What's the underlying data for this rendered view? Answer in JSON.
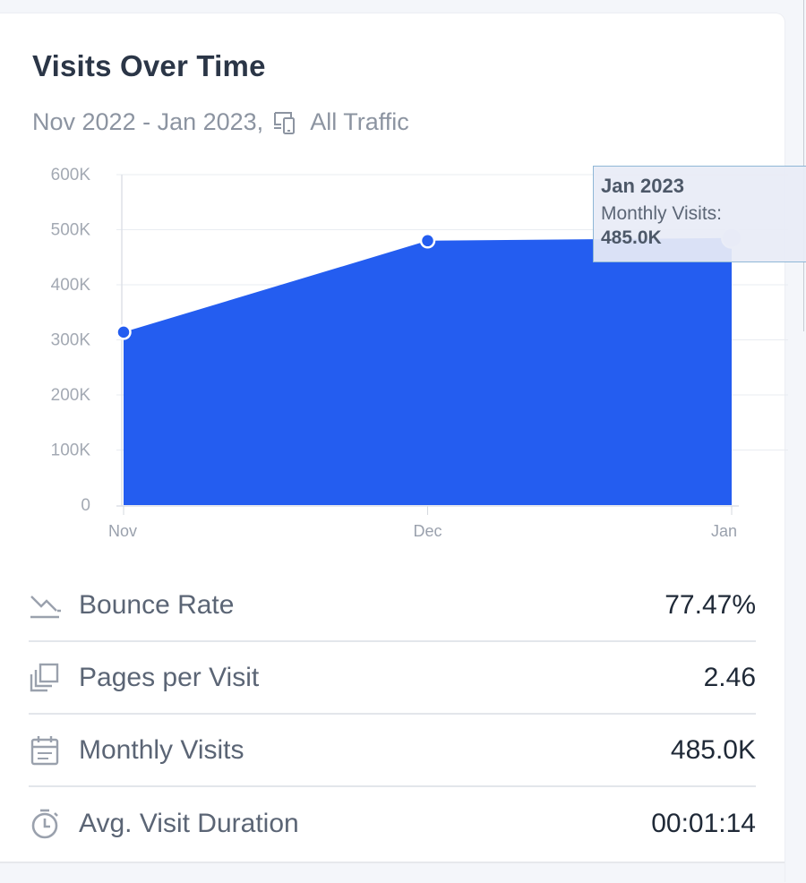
{
  "card": {
    "title": "Visits Over Time",
    "date_range": "Nov 2022 - Jan 2023,",
    "traffic_filter": "All Traffic",
    "traffic_icon": "devices-icon"
  },
  "tooltip": {
    "date": "Jan 2023",
    "label": "Monthly Visits:",
    "value": "485.0K"
  },
  "metrics": [
    {
      "icon": "trending-down-icon",
      "label": "Bounce Rate",
      "value": "77.47%"
    },
    {
      "icon": "pages-icon",
      "label": "Pages per Visit",
      "value": "2.46"
    },
    {
      "icon": "calendar-icon",
      "label": "Monthly Visits",
      "value": "485.0K"
    },
    {
      "icon": "timer-icon",
      "label": "Avg. Visit Duration",
      "value": "00:01:14"
    }
  ],
  "colors": {
    "area_fill": "#245df0",
    "point": "#245df0",
    "title": "#2b3647",
    "muted": "#8c94a1"
  },
  "chart_data": {
    "type": "area",
    "categories": [
      "Nov",
      "Dec",
      "Jan"
    ],
    "series": [
      {
        "values": [
          314000,
          480000,
          485000
        ]
      }
    ],
    "ylim": [
      0,
      600000
    ],
    "y_ticks": [
      0,
      100000,
      200000,
      300000,
      400000,
      500000,
      600000
    ],
    "y_tick_labels": [
      "0",
      "100K",
      "200K",
      "300K",
      "400K",
      "500K",
      "600K"
    ],
    "grid": true,
    "highlighted_index": 2
  }
}
